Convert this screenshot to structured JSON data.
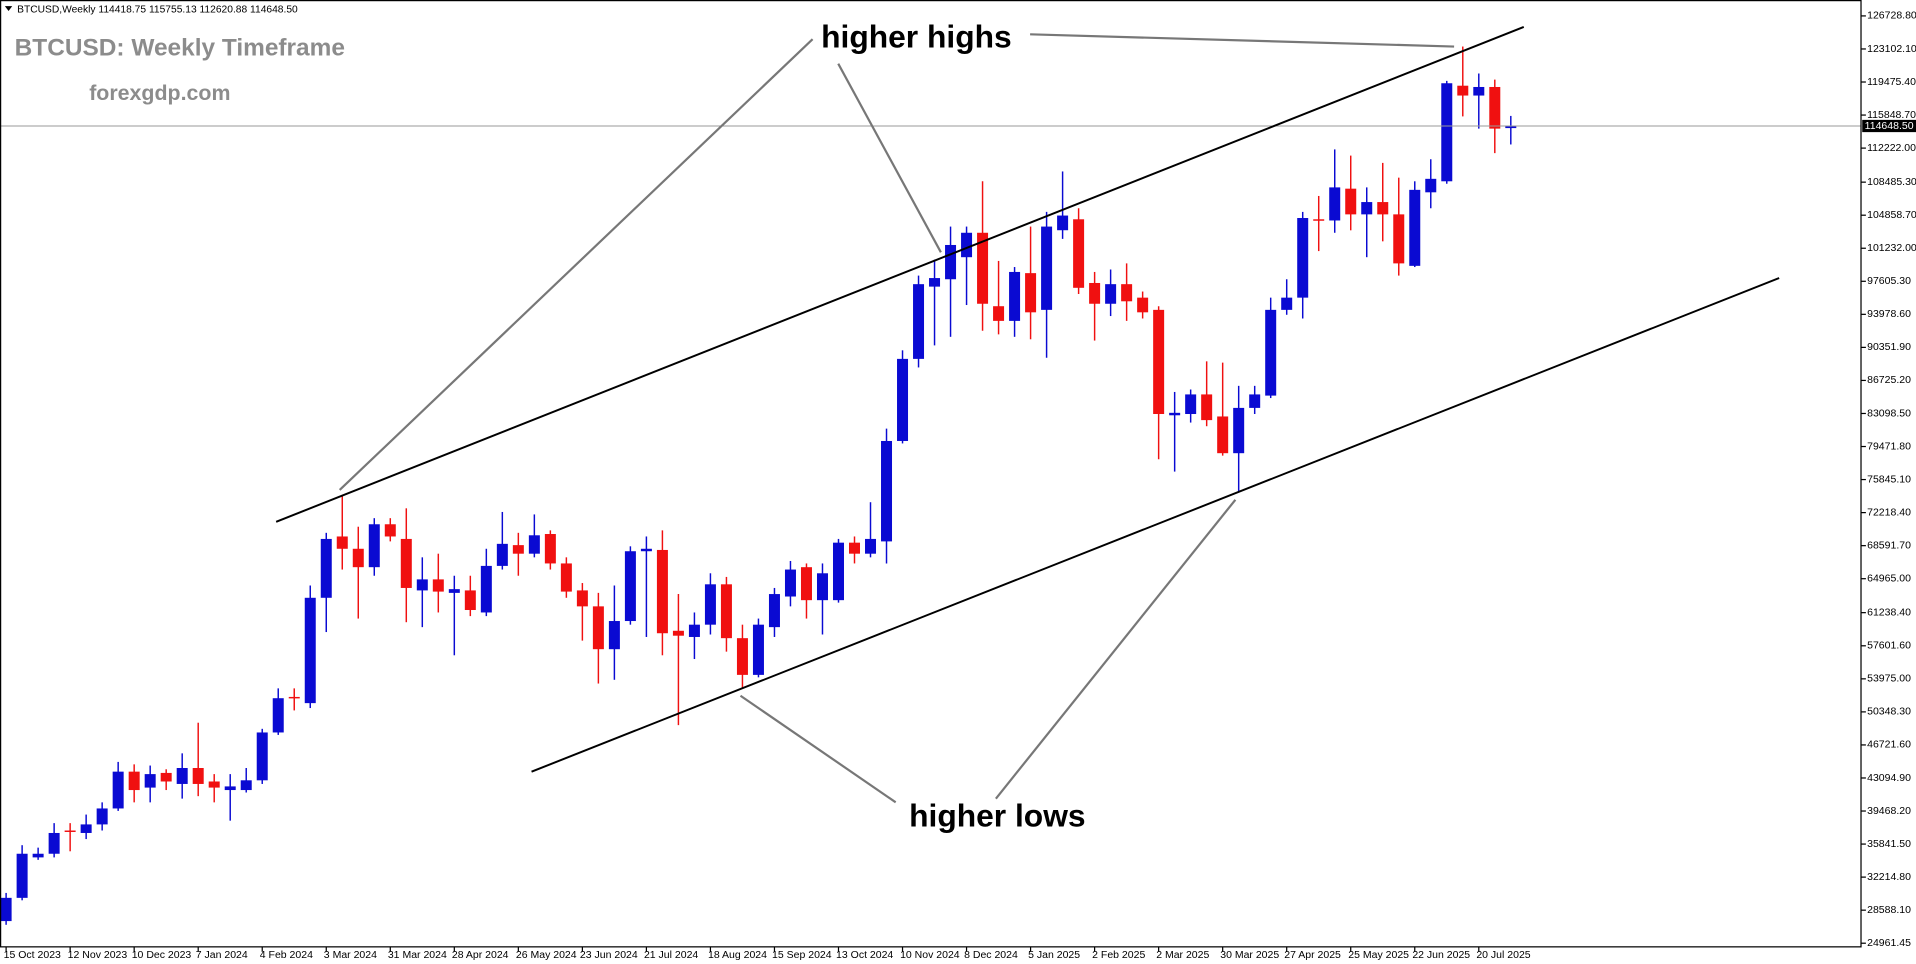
{
  "chart_data": {
    "type": "candlestick",
    "header": "BTCUSD,Weekly  114418.75 115755.13 112620.88 114648.50",
    "title": "BTCUSD: Weekly Timeframe",
    "subtitle": "forexgdp.com",
    "annotations": [
      "higher highs",
      "higher lows"
    ],
    "last_price_label": "114648.50",
    "up_color": "#0a0ad2",
    "down_color": "#f01010",
    "categories": [
      "15 Oct 2023",
      null,
      null,
      null,
      "12 Nov 2023",
      null,
      null,
      null,
      "10 Dec 2023",
      null,
      null,
      null,
      "7 Jan 2024",
      null,
      null,
      null,
      "4 Feb 2024",
      null,
      null,
      null,
      "3 Mar 2024",
      null,
      null,
      null,
      "31 Mar 2024",
      null,
      null,
      null,
      "28 Apr 2024",
      null,
      null,
      null,
      "26 May 2024",
      null,
      null,
      null,
      "23 Jun 2024",
      null,
      null,
      null,
      "21 Jul 2024",
      null,
      null,
      null,
      "18 Aug 2024",
      null,
      null,
      null,
      "15 Sep 2024",
      null,
      null,
      null,
      "13 Oct 2024",
      null,
      null,
      null,
      "10 Nov 2024",
      null,
      null,
      null,
      "8 Dec 2024",
      null,
      null,
      null,
      "5 Jan 2025",
      null,
      null,
      null,
      "2 Feb 2025",
      null,
      null,
      null,
      "2 Mar 2025",
      null,
      null,
      null,
      "30 Mar 2025",
      null,
      null,
      null,
      "27 Apr 2025",
      null,
      null,
      null,
      "25 May 2025",
      null,
      null,
      null,
      "22 Jun 2025",
      null,
      null,
      null,
      "20 Jul 2025",
      null,
      null
    ],
    "open": [
      27390,
      29940,
      34380,
      34780,
      37330,
      37060,
      38000,
      39750,
      43790,
      42040,
      43650,
      42440,
      44190,
      42710,
      41770,
      41770,
      42840,
      48090,
      51990,
      51310,
      62870,
      69600,
      68250,
      66230,
      70940,
      69330,
      63680,
      64890,
      63410,
      63680,
      61260,
      66370,
      68650,
      67710,
      69870,
      66640,
      63680,
      61930,
      57230,
      60320,
      67980,
      68120,
      59250,
      58570,
      59920,
      64350,
      58440,
      54410,
      59650,
      63010,
      66230,
      62610,
      62610,
      68920,
      67710,
      69060,
      80080,
      89090,
      97020,
      97830,
      100250,
      102930,
      94870,
      93260,
      98500,
      94470,
      103210,
      104410,
      97420,
      95140,
      97290,
      95810,
      94470,
      82900,
      83040,
      85190,
      82770,
      78740,
      83710,
      85060,
      94470,
      95810,
      104410,
      104280,
      107770,
      104950,
      106300,
      104950,
      99300,
      107370,
      108580,
      119070,
      117990,
      118930,
      114418.75
    ],
    "high": [
      30480,
      35720,
      35450,
      38140,
      38140,
      39080,
      40420,
      44860,
      44590,
      44460,
      44050,
      45800,
      49160,
      43520,
      43520,
      44190,
      48490,
      52930,
      52930,
      64220,
      70000,
      74030,
      70670,
      71610,
      71610,
      72690,
      67310,
      67710,
      65290,
      65290,
      68250,
      72290,
      70000,
      72020,
      70270,
      67310,
      64490,
      63410,
      64220,
      68520,
      69600,
      70270,
      63280,
      61260,
      65560,
      65160,
      59920,
      60590,
      63950,
      66910,
      66640,
      66640,
      69330,
      69600,
      73360,
      81430,
      90030,
      98230,
      99980,
      103610,
      103610,
      108580,
      99840,
      99170,
      103610,
      105220,
      109660,
      105620,
      98630,
      98900,
      99570,
      96480,
      94870,
      85460,
      85730,
      88820,
      88680,
      86130,
      86130,
      95810,
      97830,
      105220,
      106970,
      112080,
      111400,
      107910,
      110600,
      108980,
      108580,
      111000,
      119600,
      123370,
      120410,
      119740,
      115755.13
    ],
    "low": [
      26980,
      29670,
      34110,
      34380,
      35050,
      36390,
      37330,
      39480,
      40420,
      40420,
      41770,
      40830,
      41100,
      40420,
      38410,
      41500,
      42440,
      47820,
      50510,
      50770,
      59110,
      65970,
      60590,
      65290,
      69060,
      60190,
      59650,
      61260,
      56560,
      60860,
      60860,
      65970,
      65290,
      67310,
      65970,
      62870,
      58170,
      53460,
      53870,
      59920,
      58570,
      56560,
      48890,
      56150,
      58840,
      56960,
      52930,
      54140,
      58570,
      61930,
      60590,
      58840,
      62340,
      66640,
      67310,
      66640,
      79810,
      88150,
      90570,
      91510,
      95000,
      92180,
      91780,
      91510,
      91240,
      89220,
      102260,
      96210,
      91100,
      93790,
      93260,
      93520,
      78070,
      76720,
      82100,
      81700,
      78470,
      74440,
      83040,
      84790,
      93930,
      93520,
      100920,
      102930,
      103200,
      100250,
      101990,
      98230,
      99170,
      105620,
      108310,
      115700,
      114360,
      111670,
      112620.88
    ],
    "close": [
      29940,
      34780,
      34780,
      37060,
      37200,
      38000,
      39750,
      43790,
      41770,
      43520,
      42710,
      44190,
      42440,
      42040,
      42170,
      42840,
      48090,
      51850,
      51850,
      62870,
      69330,
      68250,
      66230,
      70940,
      69600,
      63950,
      64890,
      63550,
      63820,
      61530,
      66370,
      68790,
      67710,
      69730,
      66640,
      63550,
      61930,
      57230,
      60320,
      67980,
      68250,
      58980,
      58710,
      59920,
      64350,
      58440,
      54410,
      59920,
      63280,
      65970,
      62610,
      65560,
      68920,
      67710,
      69330,
      80080,
      89090,
      97290,
      97960,
      101590,
      102930,
      95140,
      93260,
      98630,
      94200,
      103610,
      104820,
      96890,
      95140,
      97290,
      95410,
      94200,
      83040,
      83170,
      85190,
      82370,
      78740,
      83710,
      85190,
      94470,
      95810,
      104550,
      104280,
      107910,
      104950,
      106300,
      104950,
      99570,
      107640,
      108850,
      119340,
      117990,
      118930,
      114360,
      114648.5
    ],
    "ylim": [
      24562,
      128476
    ],
    "yticks": [
      {
        "value": 126728.8,
        "label": "126728.80"
      },
      {
        "value": 123102.1,
        "label": "123102.10"
      },
      {
        "value": 119475.4,
        "label": "119475.40"
      },
      {
        "value": 115848.7,
        "label": "115848.70"
      },
      {
        "value": 112222,
        "label": "112222.00"
      },
      {
        "value": 108485.3,
        "label": "108485.30"
      },
      {
        "value": 104858.7,
        "label": "104858.70"
      },
      {
        "value": 101232,
        "label": "101232.00"
      },
      {
        "value": 97605.3,
        "label": "97605.30"
      },
      {
        "value": 93978.6,
        "label": "93978.60"
      },
      {
        "value": 90351.9,
        "label": "90351.90"
      },
      {
        "value": 86725.2,
        "label": "86725.20"
      },
      {
        "value": 83098.5,
        "label": "83098.50"
      },
      {
        "value": 79471.8,
        "label": "79471.80"
      },
      {
        "value": 75845.1,
        "label": "75845.10"
      },
      {
        "value": 72218.4,
        "label": "72218.40"
      },
      {
        "value": 68591.7,
        "label": "68591.70"
      },
      {
        "value": 64965,
        "label": "64965.00"
      },
      {
        "value": 61238.4,
        "label": "61238.40"
      },
      {
        "value": 57601.6,
        "label": "57601.60"
      },
      {
        "value": 53975,
        "label": "53975.00"
      },
      {
        "value": 50348.3,
        "label": "50348.30"
      },
      {
        "value": 46721.6,
        "label": "46721.60"
      },
      {
        "value": 43094.9,
        "label": "43094.90"
      },
      {
        "value": 39468.2,
        "label": "39468.20"
      },
      {
        "value": 35841.5,
        "label": "35841.50"
      },
      {
        "value": 32214.8,
        "label": "32214.80"
      },
      {
        "value": 28588.1,
        "label": "28588.10"
      },
      {
        "value": 24961.45,
        "label": "24961.45"
      }
    ]
  }
}
